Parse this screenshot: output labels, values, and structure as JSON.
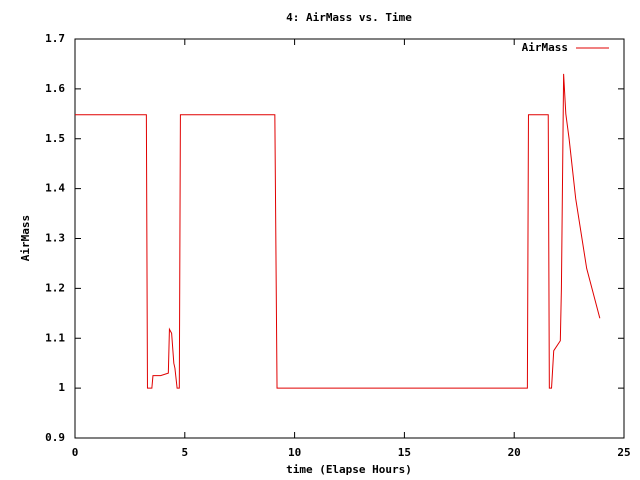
{
  "chart_data": {
    "type": "line",
    "title": "4: AirMass vs. Time",
    "xlabel": "time (Elapse Hours)",
    "ylabel": "AirMass",
    "x": [
      0,
      3.25,
      3.3,
      3.5,
      3.55,
      3.9,
      4.25,
      4.3,
      4.4,
      4.5,
      4.55,
      4.65,
      4.75,
      4.8,
      9.1,
      9.2,
      20.6,
      20.65,
      21.55,
      21.6,
      21.7,
      21.8,
      22.1,
      22.15,
      22.25,
      22.35,
      22.5,
      22.8,
      23.3,
      23.9
    ],
    "series": [
      {
        "name": "AirMass",
        "color": "#e00000",
        "values": [
          1.548,
          1.548,
          1.0,
          1.0,
          1.025,
          1.025,
          1.03,
          1.118,
          1.11,
          1.05,
          1.04,
          1.0,
          1.0,
          1.548,
          1.548,
          1.0,
          1.0,
          1.548,
          1.548,
          1.0,
          1.0,
          1.075,
          1.095,
          1.2,
          1.63,
          1.55,
          1.5,
          1.38,
          1.24,
          1.14
        ]
      }
    ],
    "xlim": [
      0,
      25
    ],
    "xticks": [
      0,
      5,
      10,
      15,
      20,
      25
    ],
    "ylim": [
      0.9,
      1.7
    ],
    "yticks": [
      0.9,
      1,
      1.1,
      1.2,
      1.3,
      1.4,
      1.5,
      1.6,
      1.7
    ],
    "legend": "upper right"
  }
}
